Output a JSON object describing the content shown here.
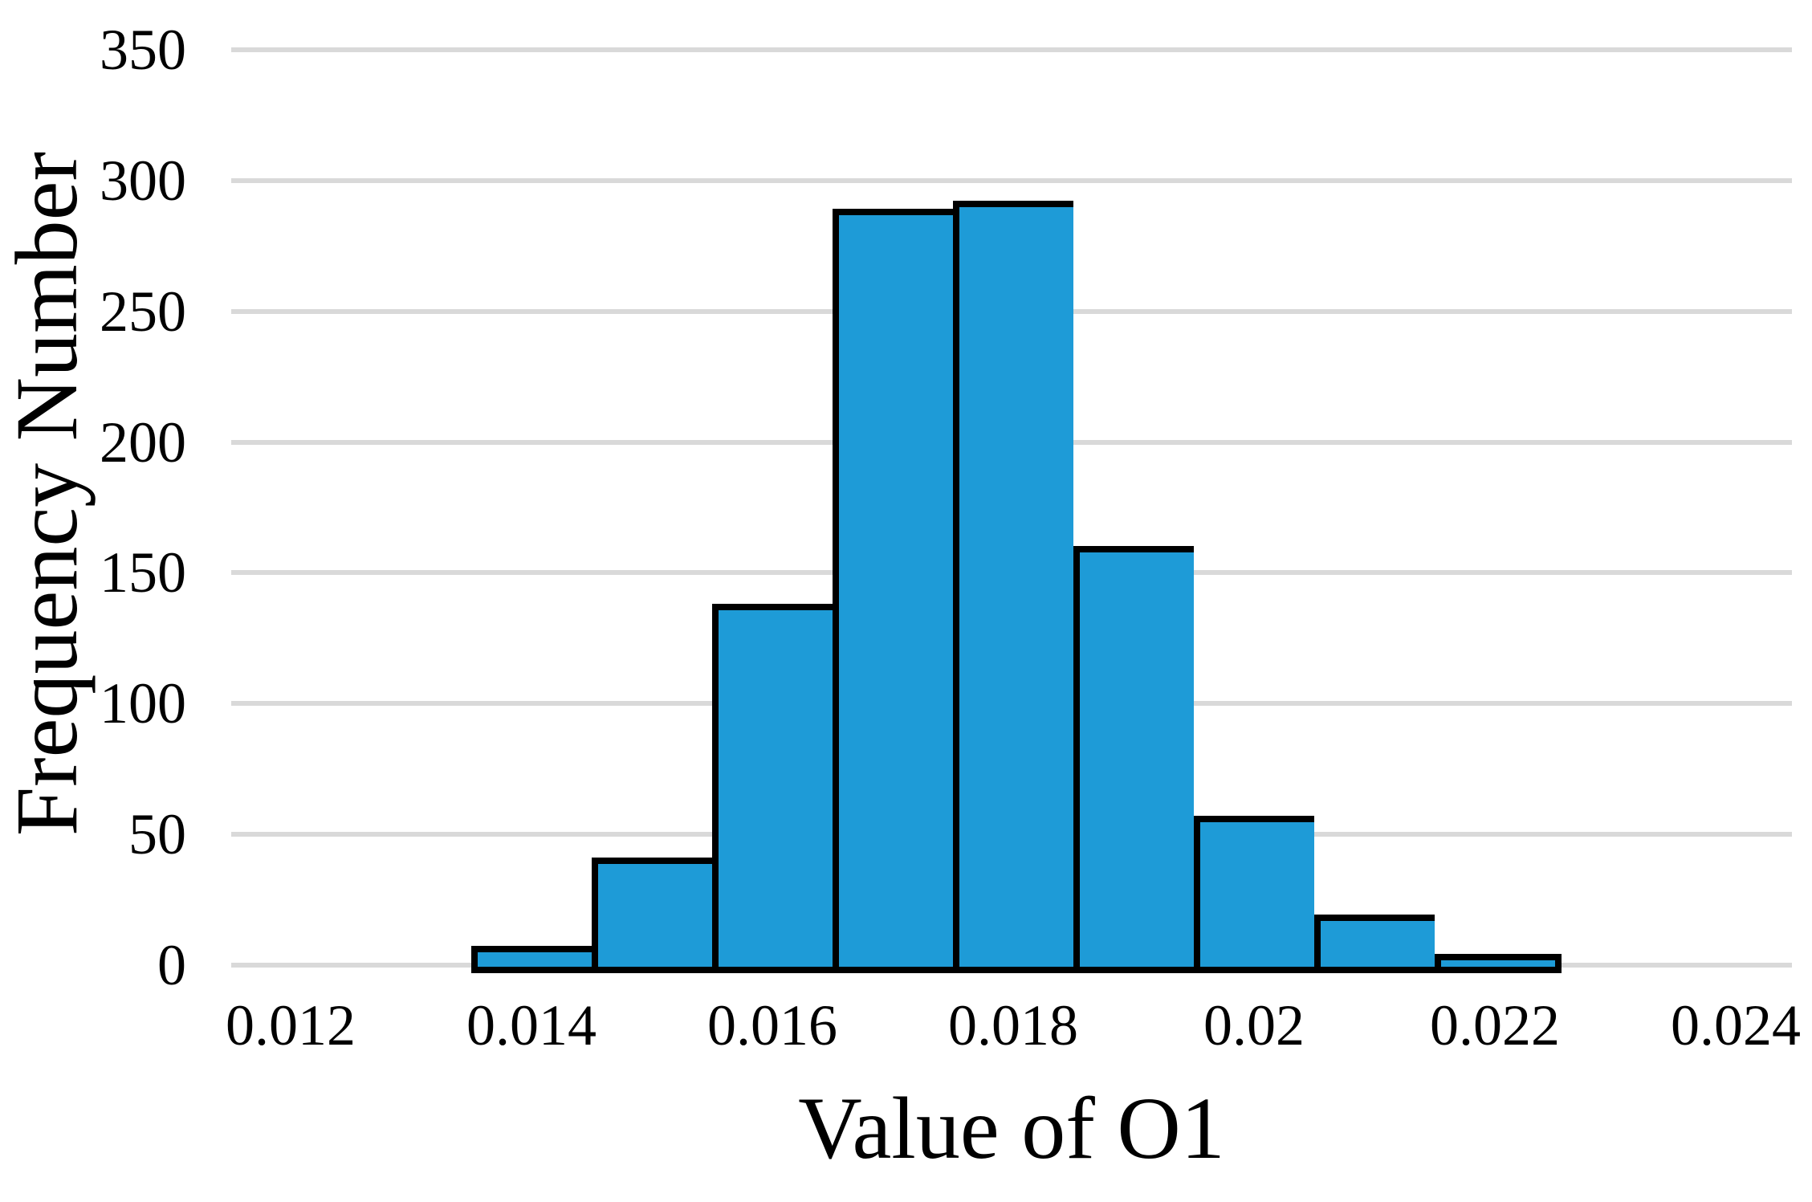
{
  "figure": {
    "background": "#FFFFFF"
  },
  "chart_data": {
    "type": "bar",
    "subtype": "histogram",
    "title": "",
    "xlabel": "Value of O1",
    "ylabel": "Frequency Number",
    "bin_width": 0.001,
    "bin_centers": [
      0.014,
      0.015,
      0.016,
      0.017,
      0.018,
      0.019,
      0.02,
      0.021,
      0.022
    ],
    "bin_edges": [
      0.0135,
      0.0145,
      0.0155,
      0.0165,
      0.0175,
      0.0185,
      0.0195,
      0.0205,
      0.0215,
      0.0225
    ],
    "values": [
      6,
      40,
      137,
      288,
      291,
      159,
      56,
      18,
      3
    ],
    "x_ticks": [
      0.012,
      0.014,
      0.016,
      0.018,
      0.02,
      0.022,
      0.024
    ],
    "x_tick_labels": [
      "0.012",
      "0.014",
      "0.016",
      "0.018",
      "0.02",
      "0.022",
      "0.024"
    ],
    "y_ticks": [
      0,
      50,
      100,
      150,
      200,
      250,
      300,
      350
    ],
    "y_tick_labels": [
      "0",
      "50",
      "100",
      "150",
      "200",
      "250",
      "300",
      "350"
    ],
    "ylim": [
      0,
      350
    ],
    "xlim": [
      0.0113,
      0.0246
    ],
    "grid": true,
    "legend": false,
    "colors": {
      "bar_fill": "#1E9BD7",
      "bar_border": "#000000",
      "gridline": "#D9D9D9",
      "text": "#000000"
    }
  }
}
